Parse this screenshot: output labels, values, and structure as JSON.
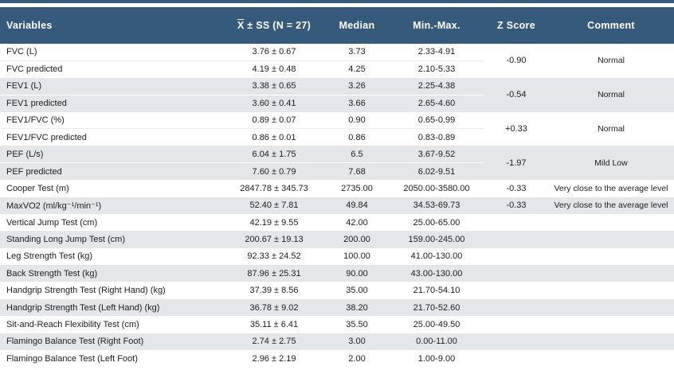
{
  "colors": {
    "header_bg": "#355a7c",
    "stripe_bg": "#e3e7ea",
    "header_text": "#ffffff",
    "body_text": "#1b1b1b"
  },
  "table": {
    "header": {
      "variables": "Variables",
      "mean_xbar": "X",
      "mean_rest": " ± SS (N = 27)",
      "median": "Median",
      "min_max": "Min.-Max.",
      "z_score": "Z Score",
      "comment": "Comment"
    },
    "groups": [
      {
        "shaded": false,
        "z_score": "-0.90",
        "comment": "Normal",
        "rows": [
          {
            "variable": "FVC (L)",
            "mean_ss": "3.76 ± 0.67",
            "median": "3.73",
            "min_max": "2.33-4.91"
          },
          {
            "variable": "FVC predicted",
            "mean_ss": "4.19 ± 0.48",
            "median": "4.25",
            "min_max": "2.10-5.33"
          }
        ]
      },
      {
        "shaded": true,
        "z_score": "-0.54",
        "comment": "Normal",
        "rows": [
          {
            "variable": "FEV1 (L)",
            "mean_ss": "3.38 ± 0.65",
            "median": "3.26",
            "min_max": "2.25-4.38"
          },
          {
            "variable": "FEV1 predicted",
            "mean_ss": "3.60 ± 0.41",
            "median": "3.66",
            "min_max": "2.65-4.60"
          }
        ]
      },
      {
        "shaded": false,
        "z_score": "+0.33",
        "comment": "Normal",
        "rows": [
          {
            "variable": "FEV1/FVC (%)",
            "mean_ss": "0.89 ± 0.07",
            "median": "0.90",
            "min_max": "0.65-0.99"
          },
          {
            "variable": "FEV1/FVC predicted",
            "mean_ss": "0.86 ± 0.01",
            "median": "0.86",
            "min_max": "0.83-0.89"
          }
        ]
      },
      {
        "shaded": true,
        "z_score": "-1.97",
        "comment": "Mild Low",
        "rows": [
          {
            "variable": "PEF (L/s)",
            "mean_ss": "6.04 ± 1.75",
            "median": "6.5",
            "min_max": "3.67-9.52"
          },
          {
            "variable": "PEF predicted",
            "mean_ss": "7.60 ± 0.79",
            "median": "7.68",
            "min_max": "6.02-9.51"
          }
        ]
      },
      {
        "shaded": false,
        "z_score": "-0.33",
        "comment": "Very close to the average level",
        "rows": [
          {
            "variable": "Cooper Test (m)",
            "mean_ss": "2847.78 ± 345.73",
            "median": "2735.00",
            "min_max": "2050.00-3580.00"
          }
        ]
      },
      {
        "shaded": true,
        "z_score": "-0.33",
        "comment": "Very close to the average level",
        "rows": [
          {
            "variable": "MaxVO2 (ml/kg⁻¹/min⁻¹)",
            "mean_ss": "52.40 ± 7.81",
            "median": "49.84",
            "min_max": "34.53-69.73"
          }
        ]
      },
      {
        "shaded": false,
        "z_score": "",
        "comment": "",
        "rows": [
          {
            "variable": "Vertical Jump Test (cm)",
            "mean_ss": "42.19 ± 9.55",
            "median": "42.00",
            "min_max": "25.00-65.00"
          }
        ]
      },
      {
        "shaded": true,
        "z_score": "",
        "comment": "",
        "rows": [
          {
            "variable": "Standing Long Jump Test (cm)",
            "mean_ss": "200.67 ± 19.13",
            "median": "200.00",
            "min_max": "159.00-245.00"
          }
        ]
      },
      {
        "shaded": false,
        "z_score": "",
        "comment": "",
        "rows": [
          {
            "variable": "Leg Strength Test (kg)",
            "mean_ss": "92.33 ± 24.52",
            "median": "100.00",
            "min_max": "41.00-130.00"
          }
        ]
      },
      {
        "shaded": true,
        "z_score": "",
        "comment": "",
        "rows": [
          {
            "variable": "Back Strength Test (kg)",
            "mean_ss": "87.96 ± 25.31",
            "median": "90.00",
            "min_max": "43.00-130.00"
          }
        ]
      },
      {
        "shaded": false,
        "z_score": "",
        "comment": "",
        "rows": [
          {
            "variable": "Handgrip Strength Test (Right Hand) (kg)",
            "mean_ss": "37.39 ± 8.56",
            "median": "35.00",
            "min_max": "21.70-54.10"
          }
        ]
      },
      {
        "shaded": true,
        "z_score": "",
        "comment": "",
        "rows": [
          {
            "variable": "Handgrip Strength Test (Left Hand) (kg)",
            "mean_ss": "36.78 ± 9.02",
            "median": "38.20",
            "min_max": "21.70-52.60"
          }
        ]
      },
      {
        "shaded": false,
        "z_score": "",
        "comment": "",
        "rows": [
          {
            "variable": "Sit-and-Reach Flexibility Test (cm)",
            "mean_ss": "35.11 ± 6.41",
            "median": "35.50",
            "min_max": "25.00-49.50"
          }
        ]
      },
      {
        "shaded": true,
        "z_score": "",
        "comment": "",
        "rows": [
          {
            "variable": "Flamingo Balance Test (Right Foot)",
            "mean_ss": "2.74 ± 2.75",
            "median": "3.00",
            "min_max": "0.00-11.00"
          }
        ]
      },
      {
        "shaded": false,
        "z_score": "",
        "comment": "",
        "rows": [
          {
            "variable": "Flamingo Balance Test (Left Foot)",
            "mean_ss": "2.96 ± 2.19",
            "median": "2.00",
            "min_max": "1.00-9.00"
          }
        ]
      }
    ]
  }
}
